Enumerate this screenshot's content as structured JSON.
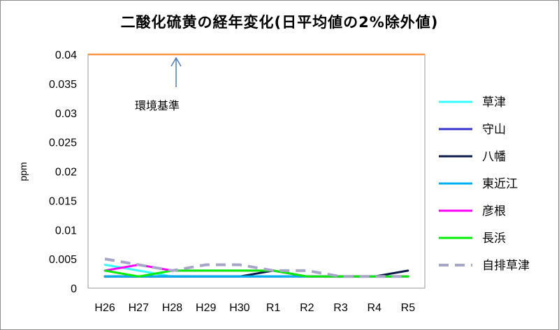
{
  "chart_data": {
    "type": "line",
    "title": "二酸化硫黄の経年変化(日平均値の2%除外値)",
    "ylabel": "ppm",
    "xlabel": "",
    "categories": [
      "H26",
      "H27",
      "H28",
      "H29",
      "H30",
      "R1",
      "R2",
      "R3",
      "R4",
      "R5"
    ],
    "ylim": [
      0,
      0.04
    ],
    "yticks": [
      0,
      0.005,
      0.01,
      0.015,
      0.02,
      0.025,
      0.03,
      0.035,
      0.04
    ],
    "ytick_labels": [
      "0",
      "0.005",
      "0.01",
      "0.015",
      "0.02",
      "0.025",
      "0.03",
      "0.035",
      "0.04"
    ],
    "grid": false,
    "legend_position": "right",
    "reference_line": {
      "label": "環境基準",
      "value": 0.04,
      "color": "#f79646"
    },
    "series": [
      {
        "name": "草津",
        "color": "#33ffff",
        "dashed": false,
        "values": [
          0.004,
          0.003,
          0.002,
          0.002,
          0.002,
          0.002,
          0.002,
          0.002,
          0.002,
          0.002
        ]
      },
      {
        "name": "守山",
        "color": "#3333cc",
        "dashed": false,
        "values": [
          0.002,
          0.002,
          0.002,
          0.002,
          0.002,
          0.002,
          0.002,
          0.002,
          0.002,
          0.002
        ]
      },
      {
        "name": "八幡",
        "color": "#0a1a4a",
        "dashed": false,
        "values": [
          0.002,
          0.002,
          0.002,
          0.002,
          0.002,
          0.003,
          0.002,
          0.002,
          0.002,
          0.003
        ]
      },
      {
        "name": "東近江",
        "color": "#00b0f0",
        "dashed": false,
        "values": [
          0.002,
          0.002,
          0.002,
          0.002,
          0.002,
          0.002,
          0.002,
          0.002,
          0.002,
          0.002
        ]
      },
      {
        "name": "彦根",
        "color": "#ff00ff",
        "dashed": false,
        "values": [
          0.003,
          0.004,
          0.003,
          0.003,
          0.003,
          0.003,
          0.002,
          0.002,
          0.002,
          0.002
        ]
      },
      {
        "name": "長浜",
        "color": "#00ee00",
        "dashed": false,
        "values": [
          0.003,
          0.002,
          0.003,
          0.003,
          0.003,
          0.003,
          0.002,
          0.002,
          0.002,
          0.002
        ]
      },
      {
        "name": "自排草津",
        "color": "#a6a6c8",
        "dashed": true,
        "values": [
          0.005,
          0.004,
          0.003,
          0.004,
          0.004,
          0.003,
          0.003,
          0.002,
          0.002,
          0.002
        ]
      }
    ]
  }
}
